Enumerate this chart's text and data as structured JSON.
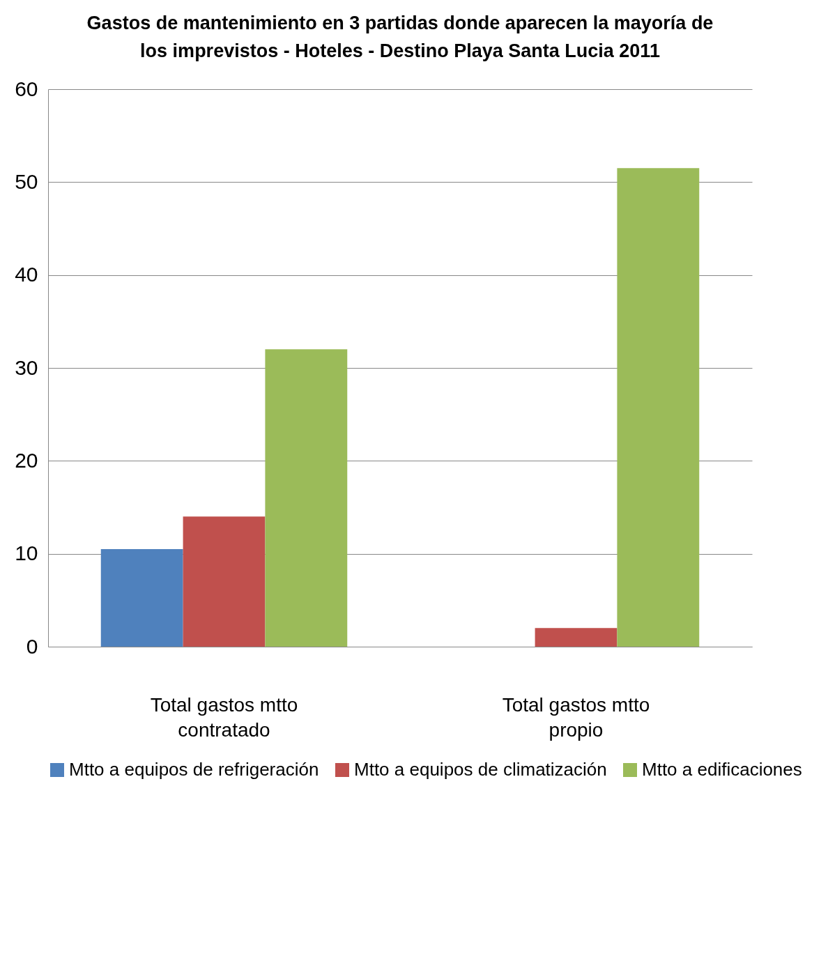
{
  "chart_data": {
    "type": "bar",
    "title": "Gastos de mantenimiento en 3 partidas donde aparecen la mayoría de los imprevistos - Hoteles - Destino Playa Santa Lucia 2011",
    "categories": [
      "Total gastos mtto contratado",
      "Total gastos mtto propio"
    ],
    "series": [
      {
        "name": "Mtto a equipos de refrigeración",
        "color": "#4f81bd",
        "values": [
          10.5,
          null
        ]
      },
      {
        "name": "Mtto a equipos de climatización",
        "color": "#c0504d",
        "values": [
          14,
          2
        ]
      },
      {
        "name": "Mtto a edificaciones",
        "color": "#9bbb59",
        "values": [
          32,
          51.5
        ]
      }
    ],
    "ylim": [
      0,
      60
    ],
    "yticks": [
      0,
      10,
      20,
      30,
      40,
      50,
      60
    ],
    "grid": "y",
    "legend": "bottom"
  }
}
